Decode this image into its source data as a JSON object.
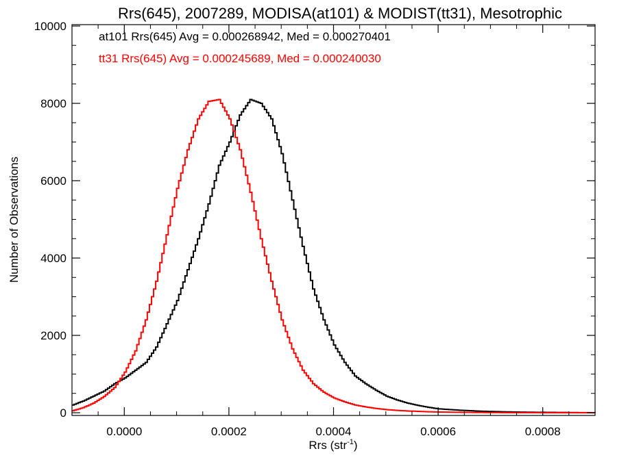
{
  "chart_data": {
    "type": "line",
    "title": "Rrs(645), 2007289, MODISA(at101) & MODIST(tt31), Mesotrophic",
    "xlabel_base": "Rrs (str",
    "xlabel_sup": "-1",
    "xlabel_end": ")",
    "ylabel": "Number of Observations",
    "xlim": [
      -0.0001,
      0.0009
    ],
    "ylim": [
      0,
      10000
    ],
    "xticks": [
      0.0,
      0.0002,
      0.0004,
      0.0006,
      0.0008
    ],
    "xtick_labels": [
      "0.0000",
      "0.0002",
      "0.0004",
      "0.0006",
      "0.0008"
    ],
    "yticks": [
      0,
      2000,
      4000,
      6000,
      8000,
      10000
    ],
    "ytick_labels": [
      "0",
      "2000",
      "4000",
      "6000",
      "8000",
      "10000"
    ],
    "grid": false,
    "annotations": [
      {
        "text": "at101 Rrs(645) Avg = 0.000268942, Med = 0.000270401",
        "color": "#000000"
      },
      {
        "text": "tt31 Rrs(645) Avg = 0.000245689, Med = 0.000240030",
        "color": "#ff0000"
      }
    ],
    "series": [
      {
        "color": "#000000",
        "x": [
          -0.0001,
          -8e-05,
          -6e-05,
          -4e-05,
          -2e-05,
          0.0,
          2e-05,
          4e-05,
          6e-05,
          8e-05,
          0.0001,
          0.00012,
          0.00014,
          0.00016,
          0.00018,
          0.0002,
          0.00022,
          0.00024,
          0.00026,
          0.00028,
          0.0003,
          0.00032,
          0.00034,
          0.00036,
          0.00038,
          0.0004,
          0.00042,
          0.00044,
          0.00046,
          0.00048,
          0.0005,
          0.00052,
          0.00054,
          0.00056,
          0.00058,
          0.0006,
          0.00064,
          0.00068,
          0.00072,
          0.00076,
          0.0008,
          0.00085,
          0.0009
        ],
        "y": [
          200,
          300,
          430,
          560,
          750,
          900,
          1100,
          1300,
          1700,
          2300,
          2900,
          3700,
          4500,
          5400,
          6400,
          7000,
          7700,
          8100,
          8000,
          7600,
          6700,
          5500,
          4300,
          3200,
          2400,
          1750,
          1300,
          950,
          750,
          580,
          430,
          330,
          250,
          190,
          140,
          100,
          65,
          40,
          25,
          15,
          10,
          5,
          0
        ]
      },
      {
        "color": "#ff0000",
        "x": [
          -0.0001,
          -8e-05,
          -6e-05,
          -4e-05,
          -2e-05,
          0.0,
          2e-05,
          4e-05,
          6e-05,
          8e-05,
          0.0001,
          0.00012,
          0.00014,
          0.00016,
          0.00018,
          0.0002,
          0.00022,
          0.00024,
          0.00026,
          0.00028,
          0.0003,
          0.00032,
          0.00034,
          0.00036,
          0.00038,
          0.0004,
          0.00042,
          0.00044,
          0.00046,
          0.00048,
          0.0005,
          0.00052,
          0.00054,
          0.00056,
          0.00058,
          0.0006,
          0.00064,
          0.00068,
          0.00072,
          0.00076,
          0.0008,
          0.00085,
          0.0009
        ],
        "y": [
          50,
          130,
          250,
          420,
          650,
          1050,
          1600,
          2400,
          3400,
          4600,
          5800,
          6800,
          7600,
          8050,
          8100,
          7600,
          6800,
          5700,
          4500,
          3400,
          2400,
          1650,
          1100,
          750,
          530,
          380,
          280,
          200,
          150,
          110,
          80,
          60,
          45,
          35,
          25,
          18,
          10,
          6,
          3,
          2,
          1,
          0,
          0
        ]
      }
    ]
  }
}
